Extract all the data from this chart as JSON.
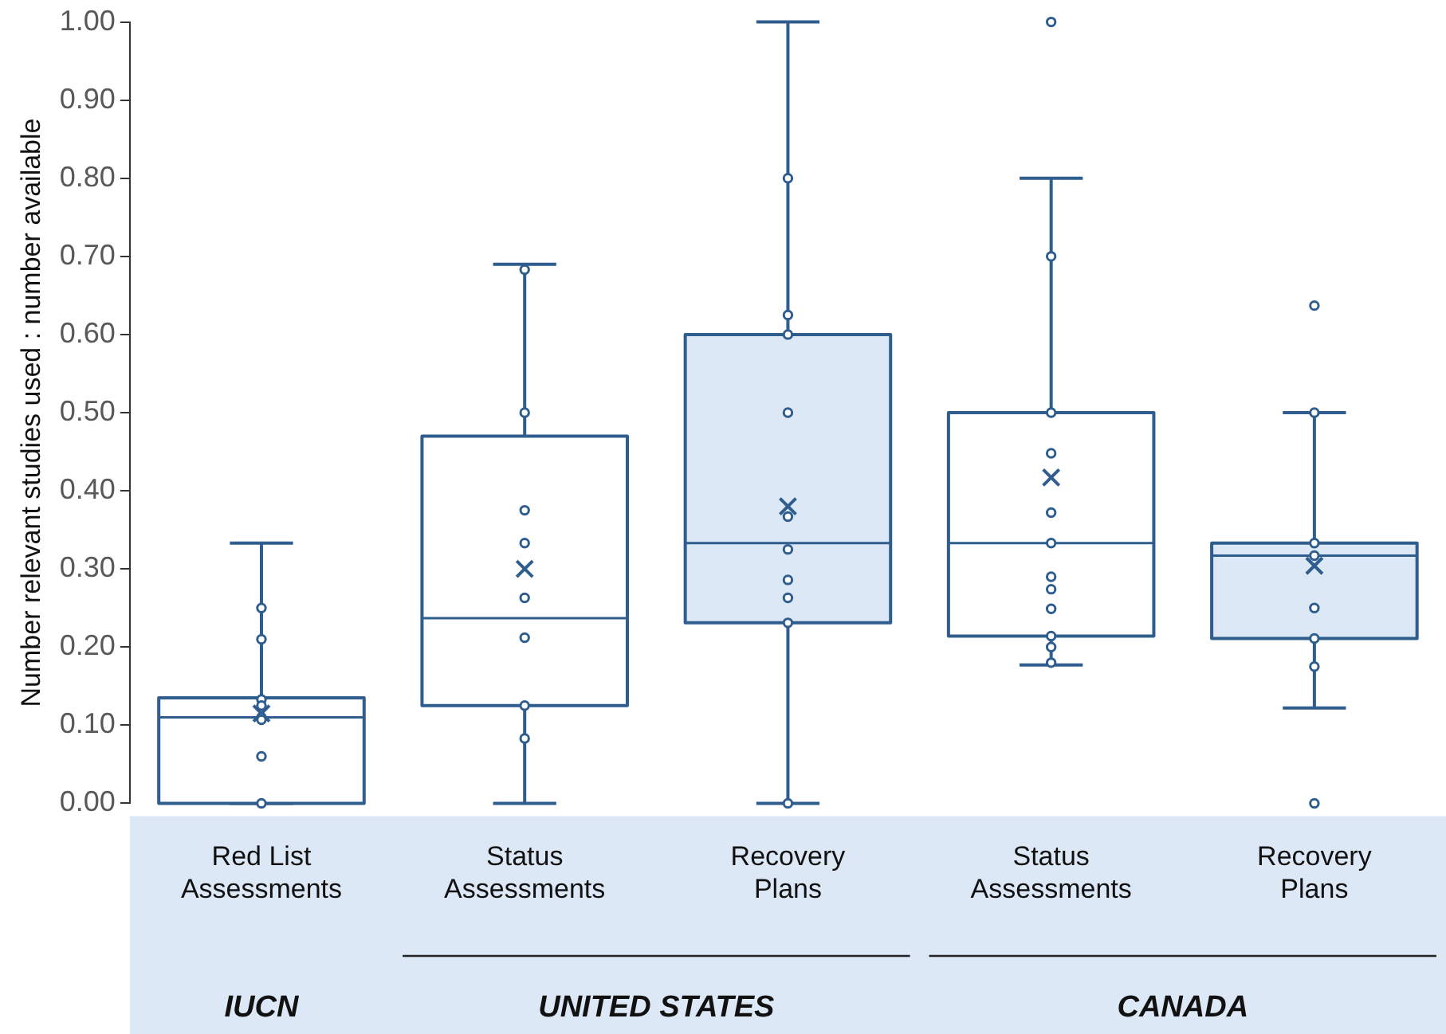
{
  "chart_data": {
    "type": "box",
    "ylabel": "Number relevant studies used : number available",
    "categories": [
      "Red List Assessments",
      "Status Assessments",
      "Recovery Plans",
      "Status Assessments",
      "Recovery Plans"
    ],
    "ylim": [
      0,
      1
    ],
    "yticks": [
      {
        "value": 0,
        "label": "0.00"
      },
      {
        "value": 0.1,
        "label": "0.10"
      },
      {
        "value": 0.2,
        "label": "0.20"
      },
      {
        "value": 0.3,
        "label": "0.30"
      },
      {
        "value": 0.4,
        "label": "0.40"
      },
      {
        "value": 0.5,
        "label": "0.50"
      },
      {
        "value": 0.6,
        "label": "0.60"
      },
      {
        "value": 0.7,
        "label": "0.70"
      },
      {
        "value": 0.8,
        "label": "0.80"
      },
      {
        "value": 0.9,
        "label": "0.90"
      },
      {
        "value": 1,
        "label": "1.00"
      }
    ],
    "grid": false,
    "legend": false,
    "annotations": [
      "IUCN",
      "UNITED STATES",
      "CANADA"
    ],
    "series": [
      {
        "color": "#2e5d8e",
        "colors": [
          "#ffffff",
          "#ffffff",
          "#dce8f5",
          "#ffffff",
          "#dce8f5"
        ],
        "boxes": [
          {
            "low": 0,
            "q1": 0,
            "median": 0.11,
            "q3": 0.135,
            "high": 0.333,
            "mean": 0.115,
            "outliers": [
              0.25,
              0.21,
              0.133,
              0.125,
              0.11,
              0.107,
              0.06,
              0
            ]
          },
          {
            "low": 0,
            "q1": 0.125,
            "median": 0.237,
            "q3": 0.47,
            "high": 0.69,
            "mean": 0.3,
            "outliers": [
              0.683,
              0.5,
              0.375,
              0.333,
              0.263,
              0.212,
              0.125,
              0.083
            ]
          },
          {
            "low": 0,
            "q1": 0.231,
            "median": 0.333,
            "q3": 0.6,
            "high": 1.0,
            "mean": 0.38,
            "outliers": [
              0.8,
              0.625,
              0.6,
              0.5,
              0.367,
              0.325,
              0.286,
              0.263,
              0.231,
              0
            ]
          },
          {
            "low": 0.177,
            "q1": 0.214,
            "median": 0.333,
            "q3": 0.5,
            "high": 0.8,
            "mean": 0.417,
            "outliers": [
              1.0,
              0.7,
              0.5,
              0.448,
              0.372,
              0.333,
              0.29,
              0.274,
              0.249,
              0.214,
              0.2,
              0.18
            ]
          },
          {
            "low": 0.122,
            "q1": 0.211,
            "median": 0.317,
            "q3": 0.333,
            "high": 0.5,
            "mean": 0.304,
            "outliers": [
              0.637,
              0.5,
              0.333,
              0.317,
              0.25,
              0.211,
              0.175,
              0
            ]
          }
        ]
      }
    ]
  }
}
